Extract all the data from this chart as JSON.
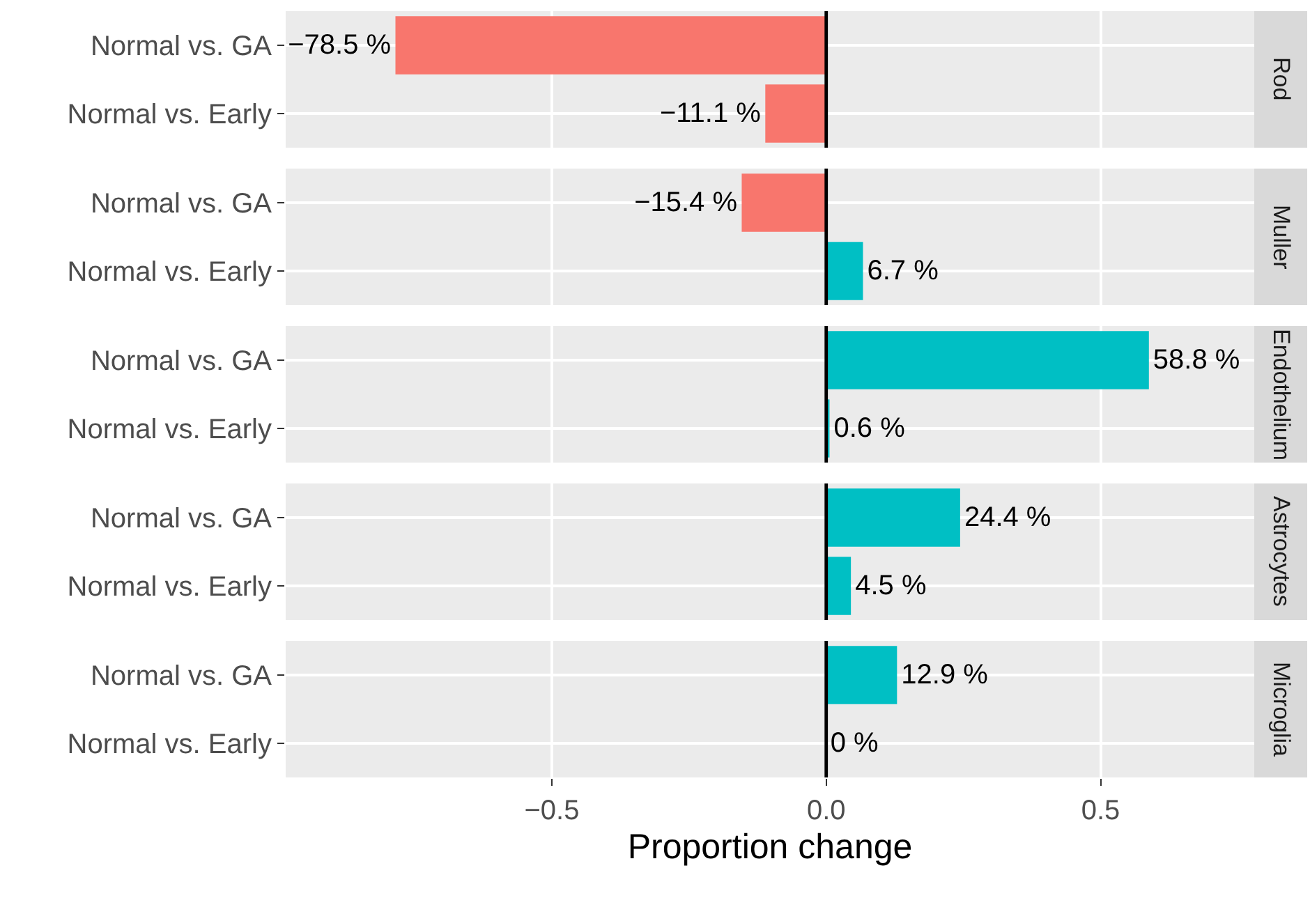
{
  "chart_data": [
    {
      "type": "bar",
      "orientation": "horizontal",
      "y2label": "Rod",
      "categories": [
        "Normal vs. GA",
        "Normal vs. Early"
      ],
      "values": [
        -0.785,
        -0.111
      ],
      "colors": [
        "#f8766d",
        "#f8766d"
      ],
      "value_labels": [
        "−78.5 %",
        "−11.1 %"
      ],
      "xlim": [
        -0.985,
        0.78
      ],
      "xticks": [
        -0.5,
        0,
        0.5
      ],
      "tick_labels": "y",
      "grid": true,
      "ref_lines": [
        {
          "axis": "x",
          "value": 0,
          "color": "#000000"
        }
      ]
    },
    {
      "type": "bar",
      "orientation": "horizontal",
      "y2label": "Muller",
      "categories": [
        "Normal vs. GA",
        "Normal vs. Early"
      ],
      "values": [
        -0.154,
        0.067
      ],
      "colors": [
        "#f8766d",
        "#00bfc4"
      ],
      "value_labels": [
        "−15.4 %",
        "6.7 %"
      ],
      "xlim": [
        -0.985,
        0.78
      ],
      "xticks": [
        -0.5,
        0,
        0.5
      ],
      "tick_labels": "y",
      "grid": true,
      "ref_lines": [
        {
          "axis": "x",
          "value": 0,
          "color": "#000000"
        }
      ]
    },
    {
      "type": "bar",
      "orientation": "horizontal",
      "y2label": "Endothelium",
      "categories": [
        "Normal vs. GA",
        "Normal vs. Early"
      ],
      "values": [
        0.588,
        0.006
      ],
      "colors": [
        "#00bfc4",
        "#00bfc4"
      ],
      "value_labels": [
        "58.8 %",
        "0.6 %"
      ],
      "xlim": [
        -0.985,
        0.78
      ],
      "xticks": [
        -0.5,
        0,
        0.5
      ],
      "tick_labels": "y",
      "grid": true,
      "ref_lines": [
        {
          "axis": "x",
          "value": 0,
          "color": "#000000"
        }
      ]
    },
    {
      "type": "bar",
      "orientation": "horizontal",
      "y2label": "Astrocytes",
      "categories": [
        "Normal vs. GA",
        "Normal vs. Early"
      ],
      "values": [
        0.244,
        0.045
      ],
      "colors": [
        "#00bfc4",
        "#00bfc4"
      ],
      "value_labels": [
        "24.4 %",
        "4.5 %"
      ],
      "xlim": [
        -0.985,
        0.78
      ],
      "xticks": [
        -0.5,
        0,
        0.5
      ],
      "tick_labels": "y",
      "grid": true,
      "ref_lines": [
        {
          "axis": "x",
          "value": 0,
          "color": "#000000"
        }
      ]
    },
    {
      "type": "bar",
      "orientation": "horizontal",
      "y2label": "Microglia",
      "categories": [
        "Normal vs. GA",
        "Normal vs. Early"
      ],
      "values": [
        0.129,
        0
      ],
      "colors": [
        "#00bfc4",
        "#00bfc4"
      ],
      "value_labels": [
        "12.9 %",
        "0 %"
      ],
      "xlim": [
        -0.985,
        0.78
      ],
      "xticks": [
        {
          "value": -0.5,
          "label": "−0.5"
        },
        {
          "value": 0,
          "label": "0.0"
        },
        {
          "value": 0.5,
          "label": "0.5"
        }
      ],
      "grid": true,
      "ref_lines": [
        {
          "axis": "x",
          "value": 0,
          "color": "#000000"
        }
      ],
      "xlabel": "Proportion change"
    }
  ]
}
